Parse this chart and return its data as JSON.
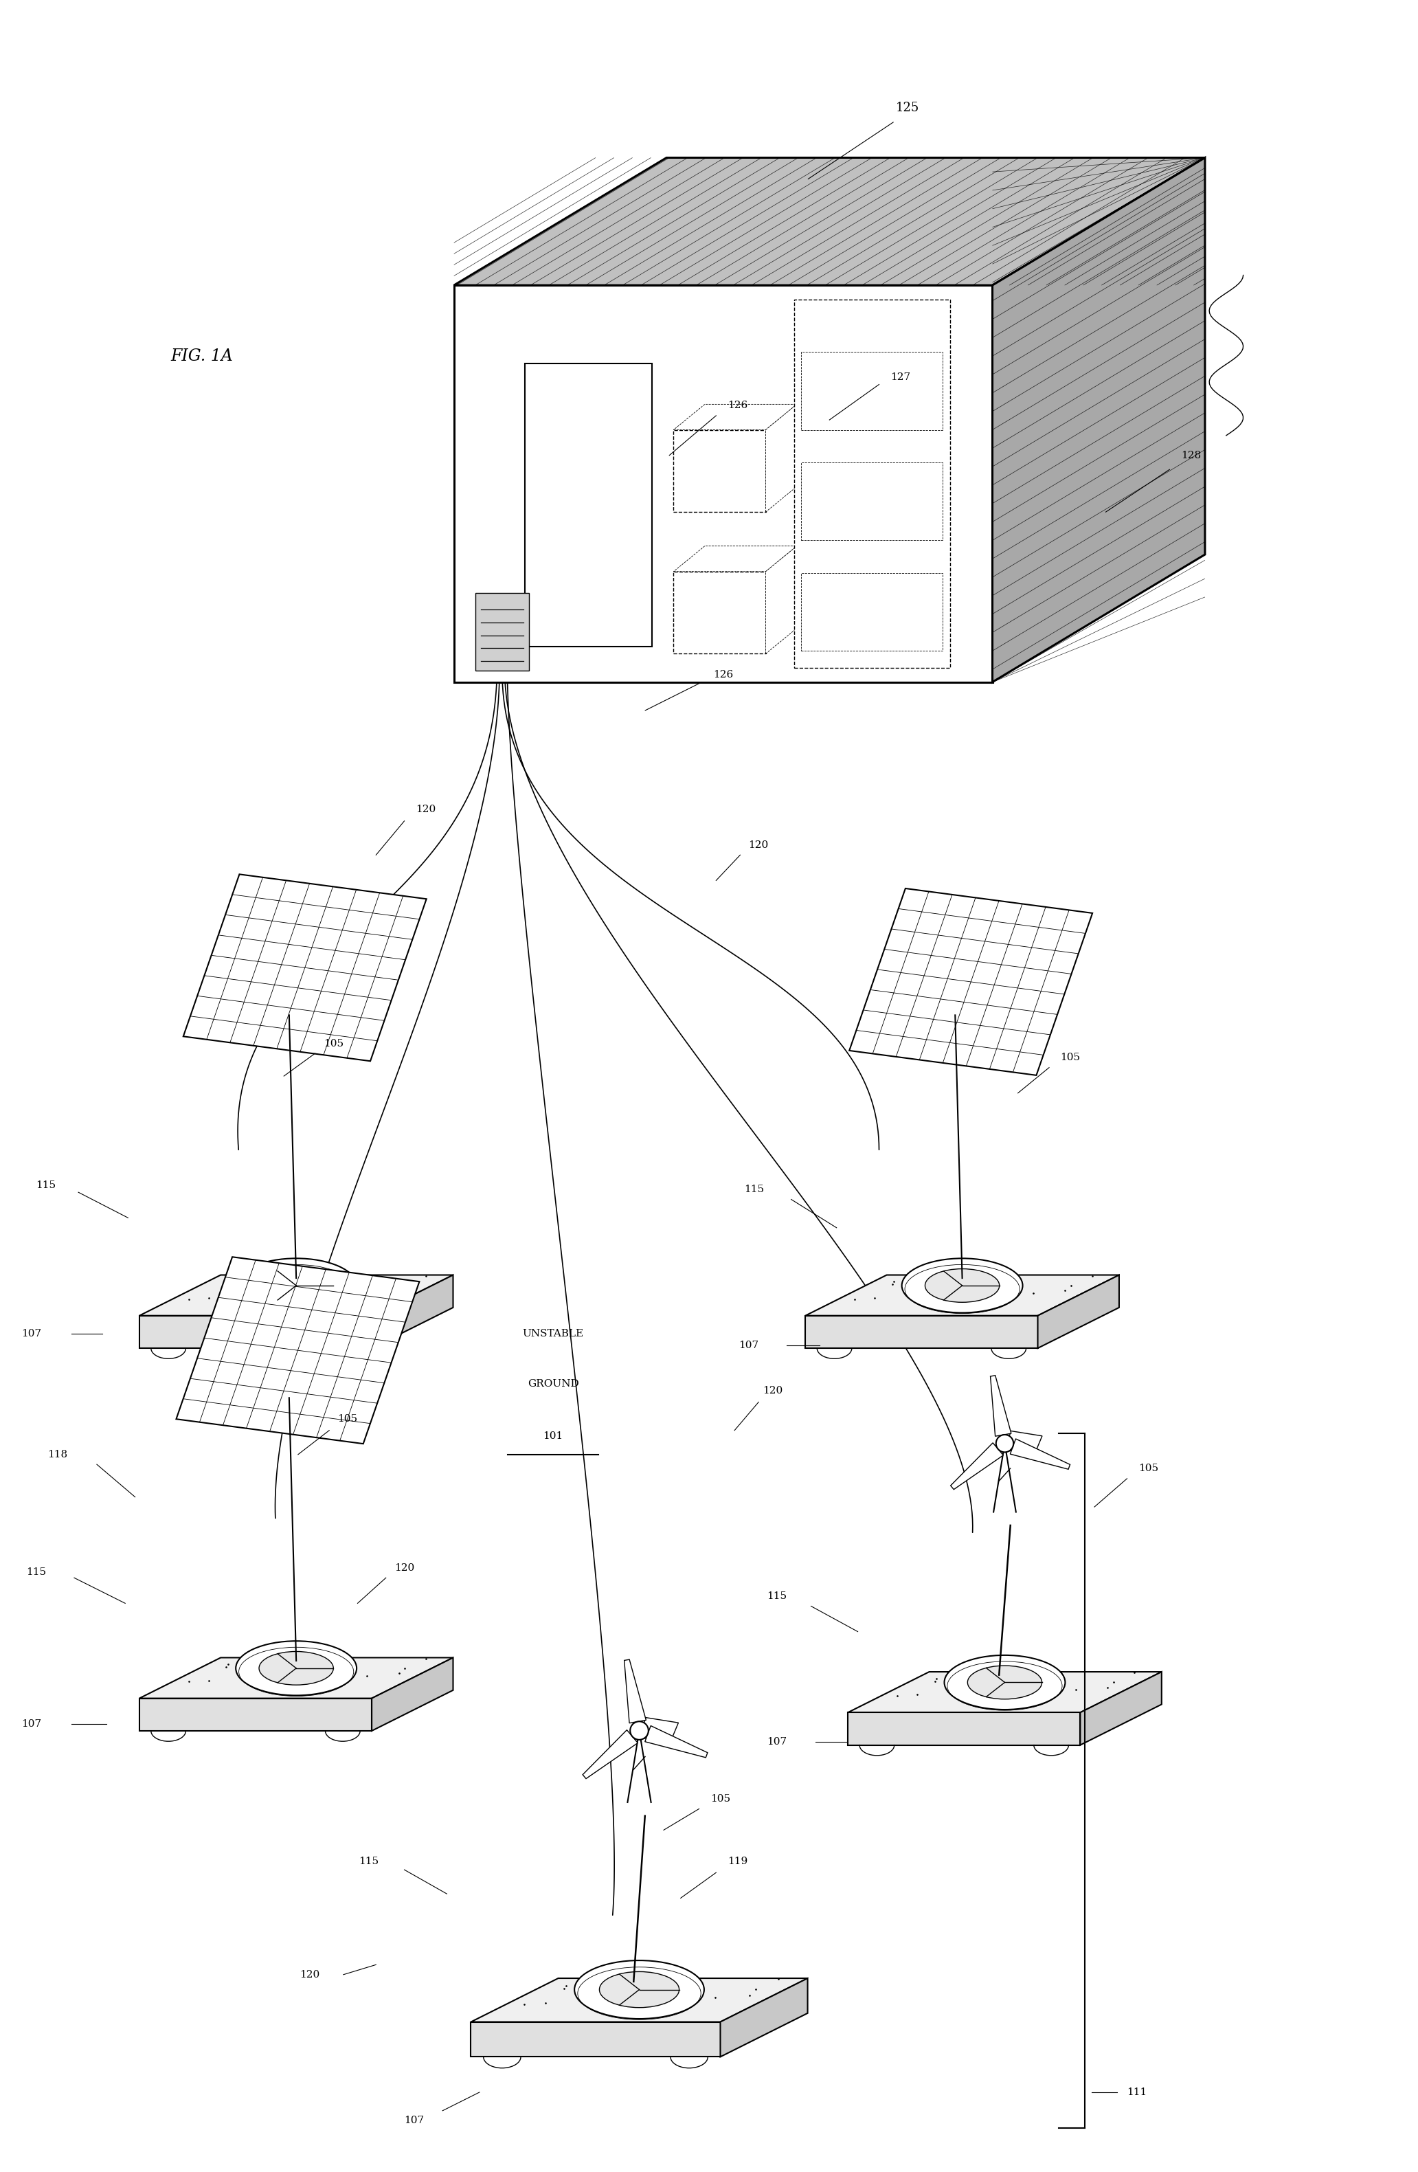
{
  "fig_width": 20.64,
  "fig_height": 31.61,
  "background_color": "#ffffff",
  "labels": {
    "fig_label": "FIG. 1A",
    "125": "125",
    "126": "126",
    "127": "127",
    "128": "128",
    "111": "111",
    "unstable_ground_line1": "UNSTABLE",
    "unstable_ground_line2": "GROUND",
    "101": "101",
    "115": "115",
    "105": "105",
    "107": "107",
    "118": "118",
    "119": "119",
    "120": "120"
  }
}
